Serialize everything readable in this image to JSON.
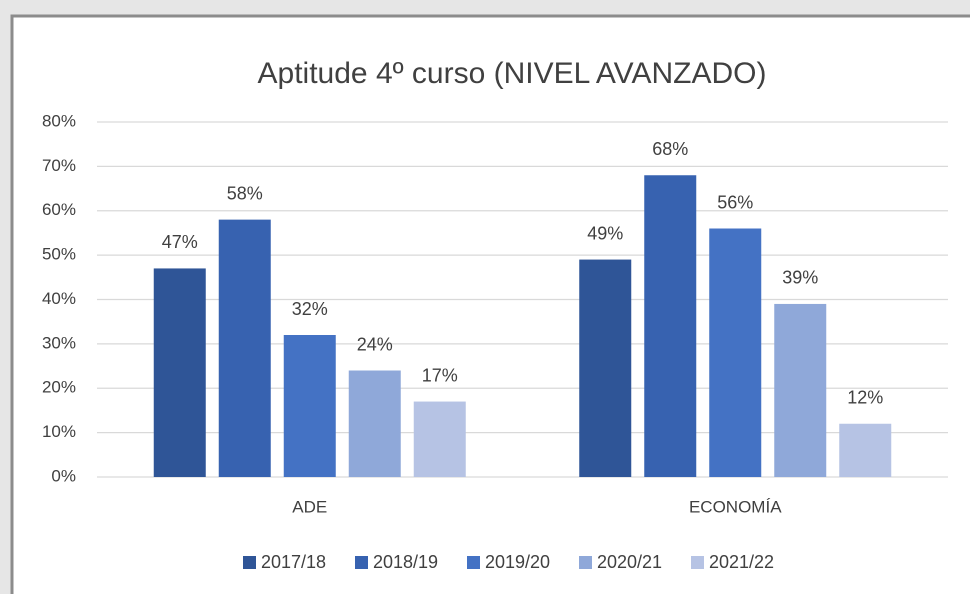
{
  "chart_data": {
    "type": "bar",
    "title": "Aptitude 4º curso (NIVEL AVANZADO)",
    "categories": [
      "ADE",
      "ECONOMÍA"
    ],
    "series": [
      {
        "name": "2017/18",
        "color": "#2f5597",
        "values": [
          47,
          49
        ],
        "value_labels": [
          "47%",
          "49%"
        ]
      },
      {
        "name": "2018/19",
        "color": "#3762b0",
        "values": [
          58,
          68
        ],
        "value_labels": [
          "58%",
          "68%"
        ]
      },
      {
        "name": "2019/20",
        "color": "#4472c4",
        "values": [
          32,
          56
        ],
        "value_labels": [
          "32%",
          "56%"
        ]
      },
      {
        "name": "2020/21",
        "color": "#8fa8d9",
        "values": [
          24,
          39
        ],
        "value_labels": [
          "24%",
          "39%"
        ]
      },
      {
        "name": "2021/22",
        "color": "#b6c3e4",
        "values": [
          17,
          12
        ],
        "value_labels": [
          "17%",
          "12%"
        ]
      }
    ],
    "ylim": [
      0,
      80
    ],
    "yticks": [
      {
        "value": 0,
        "label": "0%"
      },
      {
        "value": 10,
        "label": "10%"
      },
      {
        "value": 20,
        "label": "20%"
      },
      {
        "value": 30,
        "label": "30%"
      },
      {
        "value": 40,
        "label": "40%"
      },
      {
        "value": 50,
        "label": "50%"
      },
      {
        "value": 60,
        "label": "60%"
      },
      {
        "value": 70,
        "label": "70%"
      },
      {
        "value": 80,
        "label": "80%"
      }
    ],
    "grid": true,
    "legend": "bottom"
  }
}
